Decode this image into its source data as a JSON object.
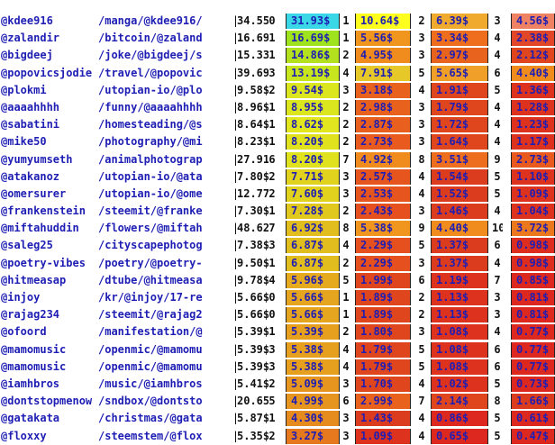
{
  "rows": [
    {
      "user": "@kdee916",
      "link": "/manga/@kdee916/",
      "payout": "34.55$",
      "counts": [
        "0",
        "1",
        "2",
        "3"
      ],
      "cells": [
        {
          "v": "31.93$",
          "bg": "#3ad7e7"
        },
        {
          "v": "10.64$",
          "bg": "#ffff1e"
        },
        {
          "v": "6.39$",
          "bg": "#f0aa2d"
        },
        {
          "v": "4.56$",
          "bg": "#f08264"
        }
      ]
    },
    {
      "user": "@zalandir",
      "link": "/bitcoin/@zaland",
      "payout": "16.69$",
      "counts": [
        "1",
        "1",
        "3",
        "4"
      ],
      "cells": [
        {
          "v": "16.69$",
          "bg": "#9fe21e"
        },
        {
          "v": "5.56$",
          "bg": "#f0961e"
        },
        {
          "v": "3.34$",
          "bg": "#ee6e1e"
        },
        {
          "v": "2.38$",
          "bg": "#e24628"
        }
      ]
    },
    {
      "user": "@bigdeej",
      "link": "/joke/@bigdeej/s",
      "payout": "15.33$",
      "counts": [
        "1",
        "2",
        "3",
        "4"
      ],
      "cells": [
        {
          "v": "14.86$",
          "bg": "#b4e11e"
        },
        {
          "v": "4.95$",
          "bg": "#f08c1e"
        },
        {
          "v": "2.97$",
          "bg": "#e8641e"
        },
        {
          "v": "2.12$",
          "bg": "#e0461e"
        }
      ]
    },
    {
      "user": "@popovicsjodie",
      "link": "/travel/@popovic",
      "payout": "39.69$",
      "counts": [
        "3",
        "4",
        "5",
        "6"
      ],
      "cells": [
        {
          "v": "13.19$",
          "bg": "#c8e61e"
        },
        {
          "v": "7.91$",
          "bg": "#e6c828"
        },
        {
          "v": "5.65$",
          "bg": "#f0a028"
        },
        {
          "v": "4.40$",
          "bg": "#f08c1e"
        }
      ]
    },
    {
      "user": "@plokmi",
      "link": "/utopian-io/@plo",
      "payout": "9.58$",
      "counts": [
        "2",
        "3",
        "4",
        "5"
      ],
      "cells": [
        {
          "v": "9.54$",
          "bg": "#dce61e"
        },
        {
          "v": "3.18$",
          "bg": "#e8621e"
        },
        {
          "v": "1.91$",
          "bg": "#e0461e"
        },
        {
          "v": "1.36$",
          "bg": "#dc321e"
        }
      ]
    },
    {
      "user": "@aaaahhhh",
      "link": "/funny/@aaaahhhh",
      "payout": "8.96$",
      "counts": [
        "1",
        "2",
        "3",
        "4"
      ],
      "cells": [
        {
          "v": "8.95$",
          "bg": "#dce61e"
        },
        {
          "v": "2.98$",
          "bg": "#e8621e"
        },
        {
          "v": "1.79$",
          "bg": "#e0461e"
        },
        {
          "v": "1.28$",
          "bg": "#dc321e"
        }
      ]
    },
    {
      "user": "@sabatini",
      "link": "/homesteading/@s",
      "payout": "8.64$",
      "counts": [
        "1",
        "2",
        "3",
        "4"
      ],
      "cells": [
        {
          "v": "8.62$",
          "bg": "#e1e61e"
        },
        {
          "v": "2.87$",
          "bg": "#e85f1e"
        },
        {
          "v": "1.72$",
          "bg": "#e0461e"
        },
        {
          "v": "1.23$",
          "bg": "#dc321e"
        }
      ]
    },
    {
      "user": "@mike50",
      "link": "/photography/@mi",
      "payout": "8.23$",
      "counts": [
        "1",
        "2",
        "3",
        "4"
      ],
      "cells": [
        {
          "v": "8.20$",
          "bg": "#e1e21e"
        },
        {
          "v": "2.73$",
          "bg": "#e85a1e"
        },
        {
          "v": "1.64$",
          "bg": "#e0461e"
        },
        {
          "v": "1.17$",
          "bg": "#dc321e"
        }
      ]
    },
    {
      "user": "@yumyumseth",
      "link": "/animalphotograp",
      "payout": "27.91$",
      "counts": [
        "6",
        "7",
        "8",
        "9"
      ],
      "cells": [
        {
          "v": "8.20$",
          "bg": "#e1e21e"
        },
        {
          "v": "4.92$",
          "bg": "#f08c1e"
        },
        {
          "v": "3.51$",
          "bg": "#ec6e1e"
        },
        {
          "v": "2.73$",
          "bg": "#e85a1e"
        }
      ]
    },
    {
      "user": "@atakanoz",
      "link": "/utopian-io/@ata",
      "payout": "7.80$",
      "counts": [
        "2",
        "3",
        "4",
        "5"
      ],
      "cells": [
        {
          "v": "7.71$",
          "bg": "#e1d21e"
        },
        {
          "v": "2.57$",
          "bg": "#e6551e"
        },
        {
          "v": "1.54$",
          "bg": "#dc3c1e"
        },
        {
          "v": "1.10$",
          "bg": "#dc321e"
        }
      ]
    },
    {
      "user": "@omersurer",
      "link": "/utopian-io/@ome",
      "payout": "12.77$",
      "counts": [
        "2",
        "3",
        "4",
        "5"
      ],
      "cells": [
        {
          "v": "7.60$",
          "bg": "#e1d21e"
        },
        {
          "v": "2.53$",
          "bg": "#e6551e"
        },
        {
          "v": "1.52$",
          "bg": "#dc3c1e"
        },
        {
          "v": "1.09$",
          "bg": "#dc321e"
        }
      ]
    },
    {
      "user": "@frankenstein",
      "link": "/steemit/@franke",
      "payout": "7.30$",
      "counts": [
        "1",
        "2",
        "3",
        "4"
      ],
      "cells": [
        {
          "v": "7.28$",
          "bg": "#e1c81e"
        },
        {
          "v": "2.43$",
          "bg": "#e6501e"
        },
        {
          "v": "1.46$",
          "bg": "#dc3c1e"
        },
        {
          "v": "1.04$",
          "bg": "#dc321e"
        }
      ]
    },
    {
      "user": "@miftahuddin",
      "link": "/flowers/@miftah",
      "payout": "48.62$",
      "counts": [
        "7",
        "8",
        "9",
        "10"
      ],
      "cells": [
        {
          "v": "6.92$",
          "bg": "#e1be1e"
        },
        {
          "v": "5.38$",
          "bg": "#f0961e"
        },
        {
          "v": "4.40$",
          "bg": "#f08c1e"
        },
        {
          "v": "3.72$",
          "bg": "#ec781e"
        }
      ]
    },
    {
      "user": "@saleg25",
      "link": "/cityscapephotog",
      "payout": "7.38$",
      "counts": [
        "3",
        "4",
        "5",
        "6"
      ],
      "cells": [
        {
          "v": "6.87$",
          "bg": "#e1be1e"
        },
        {
          "v": "2.29$",
          "bg": "#e6501e"
        },
        {
          "v": "1.37$",
          "bg": "#dc3c1e"
        },
        {
          "v": "0.98$",
          "bg": "#dc2d1e"
        }
      ]
    },
    {
      "user": "@poetry-vibes",
      "link": "/poetry/@poetry-",
      "payout": "9.50$",
      "counts": [
        "1",
        "2",
        "3",
        "4"
      ],
      "cells": [
        {
          "v": "6.87$",
          "bg": "#e1be1e"
        },
        {
          "v": "2.29$",
          "bg": "#e6501e"
        },
        {
          "v": "1.37$",
          "bg": "#dc3c1e"
        },
        {
          "v": "0.98$",
          "bg": "#dc2d1e"
        }
      ]
    },
    {
      "user": "@hitmeasap",
      "link": "/dtube/@hitmeasa",
      "payout": "9.78$",
      "counts": [
        "4",
        "5",
        "6",
        "7"
      ],
      "cells": [
        {
          "v": "5.96$",
          "bg": "#e6aa1e"
        },
        {
          "v": "1.99$",
          "bg": "#e0461e"
        },
        {
          "v": "1.19$",
          "bg": "#dc321e"
        },
        {
          "v": "0.85$",
          "bg": "#dc281e"
        }
      ]
    },
    {
      "user": "@injoy",
      "link": "/kr/@injoy/17-re",
      "payout": "5.66$",
      "counts": [
        "0",
        "1",
        "2",
        "3"
      ],
      "cells": [
        {
          "v": "5.66$",
          "bg": "#e6a51e"
        },
        {
          "v": "1.89$",
          "bg": "#e0461e"
        },
        {
          "v": "1.13$",
          "bg": "#dc321e"
        },
        {
          "v": "0.81$",
          "bg": "#dc281e"
        }
      ]
    },
    {
      "user": "@rajag234",
      "link": "/steemit/@rajag2",
      "payout": "5.66$",
      "counts": [
        "0",
        "1",
        "2",
        "3"
      ],
      "cells": [
        {
          "v": "5.66$",
          "bg": "#e6a51e"
        },
        {
          "v": "1.89$",
          "bg": "#e0461e"
        },
        {
          "v": "1.13$",
          "bg": "#dc321e"
        },
        {
          "v": "0.81$",
          "bg": "#dc281e"
        }
      ]
    },
    {
      "user": "@ofoord",
      "link": "/manifestation/@",
      "payout": "5.39$",
      "counts": [
        "1",
        "2",
        "3",
        "4"
      ],
      "cells": [
        {
          "v": "5.39$",
          "bg": "#e6a01e"
        },
        {
          "v": "1.80$",
          "bg": "#e0461e"
        },
        {
          "v": "1.08$",
          "bg": "#dc321e"
        },
        {
          "v": "0.77$",
          "bg": "#dc281e"
        }
      ]
    },
    {
      "user": "@mamomusic",
      "link": "/openmic/@mamomu",
      "payout": "5.39$",
      "counts": [
        "3",
        "4",
        "5",
        "6"
      ],
      "cells": [
        {
          "v": "5.38$",
          "bg": "#e6a01e"
        },
        {
          "v": "1.79$",
          "bg": "#e0461e"
        },
        {
          "v": "1.08$",
          "bg": "#dc321e"
        },
        {
          "v": "0.77$",
          "bg": "#dc281e"
        }
      ]
    },
    {
      "user": "@mamomusic",
      "link": "/openmic/@mamomu",
      "payout": "5.39$",
      "counts": [
        "3",
        "4",
        "5",
        "6"
      ],
      "cells": [
        {
          "v": "5.38$",
          "bg": "#e6a01e"
        },
        {
          "v": "1.79$",
          "bg": "#e0461e"
        },
        {
          "v": "1.08$",
          "bg": "#dc321e"
        },
        {
          "v": "0.77$",
          "bg": "#dc281e"
        }
      ]
    },
    {
      "user": "@iamhbros",
      "link": "/music/@iamhbros",
      "payout": "5.41$",
      "counts": [
        "2",
        "3",
        "4",
        "5"
      ],
      "cells": [
        {
          "v": "5.09$",
          "bg": "#e6961e"
        },
        {
          "v": "1.70$",
          "bg": "#e0461e"
        },
        {
          "v": "1.02$",
          "bg": "#dc321e"
        },
        {
          "v": "0.73$",
          "bg": "#dc281e"
        }
      ]
    },
    {
      "user": "@dontstopmenow",
      "link": "/sndbox/@dontsto",
      "payout": "20.65$",
      "counts": [
        "5",
        "6",
        "7",
        "8"
      ],
      "cells": [
        {
          "v": "4.99$",
          "bg": "#e6961e"
        },
        {
          "v": "2.99$",
          "bg": "#e8621e"
        },
        {
          "v": "2.14$",
          "bg": "#e0461e"
        },
        {
          "v": "1.66$",
          "bg": "#dc3c1e"
        }
      ]
    },
    {
      "user": "@gatakata",
      "link": "/christmas/@gata",
      "payout": "5.87$",
      "counts": [
        "1",
        "3",
        "4",
        "5"
      ],
      "cells": [
        {
          "v": "4.30$",
          "bg": "#e68c1e"
        },
        {
          "v": "1.43$",
          "bg": "#dc3c1e"
        },
        {
          "v": "0.86$",
          "bg": "#dc281e"
        },
        {
          "v": "0.61$",
          "bg": "#dc281e"
        }
      ]
    },
    {
      "user": "@floxxy",
      "link": "/steemstem/@flox",
      "payout": "5.35$",
      "counts": [
        "2",
        "3",
        "4",
        "5"
      ],
      "cells": [
        {
          "v": "3.27$",
          "bg": "#e6781e"
        },
        {
          "v": "1.09$",
          "bg": "#dc321e"
        },
        {
          "v": "0.65$",
          "bg": "#dc281e"
        },
        {
          "v": "0.47$",
          "bg": "#dc281e"
        }
      ]
    }
  ]
}
